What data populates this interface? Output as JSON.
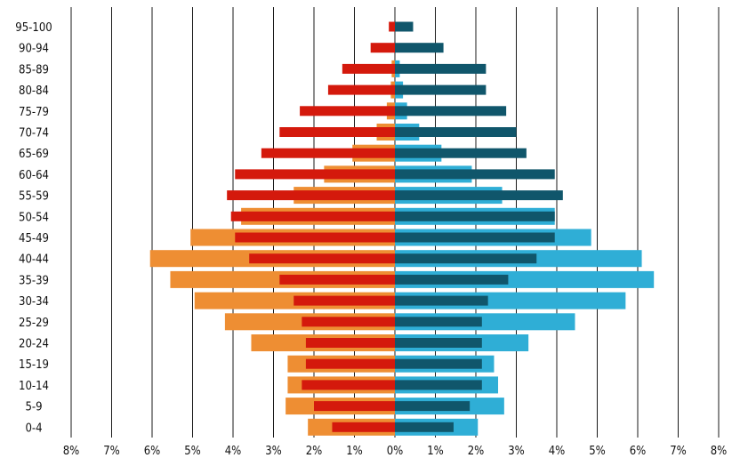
{
  "chart_data": {
    "type": "bar",
    "orientation": "horizontal",
    "layout": "population-pyramid",
    "title": "",
    "xlabel": "",
    "ylabel": "",
    "categories": [
      "95-100",
      "90-94",
      "85-89",
      "80-84",
      "75-79",
      "70-74",
      "65-69",
      "60-64",
      "55-59",
      "50-54",
      "45-49",
      "40-44",
      "35-39",
      "30-34",
      "25-29",
      "20-24",
      "15-19",
      "10-14",
      "5-9",
      "0-4"
    ],
    "xlim": [
      -8,
      8
    ],
    "xticks": [
      -8,
      -7,
      -6,
      -5,
      -4,
      -3,
      -2,
      -1,
      0,
      1,
      2,
      3,
      4,
      5,
      6,
      7,
      8
    ],
    "xtick_labels": [
      "8%",
      "7%",
      "6%",
      "5%",
      "4%",
      "3%",
      "2%",
      "1%",
      "0%",
      "1%",
      "2%",
      "3%",
      "4%",
      "5%",
      "6%",
      "7%",
      "8%"
    ],
    "grid": "vertical",
    "legend": "none",
    "series": [
      {
        "side": "left",
        "style": "wide",
        "color": "#EE8E33",
        "values": [
          0,
          0,
          0.08,
          0.1,
          0.2,
          0.45,
          1.05,
          1.75,
          2.5,
          3.8,
          5.05,
          6.05,
          5.55,
          4.95,
          4.2,
          3.55,
          2.65,
          2.65,
          2.7,
          2.15
        ]
      },
      {
        "side": "right",
        "style": "wide",
        "color": "#2FAED6",
        "values": [
          0,
          0,
          0.12,
          0.2,
          0.3,
          0.6,
          1.15,
          1.9,
          2.65,
          3.95,
          4.85,
          6.1,
          6.4,
          5.7,
          4.45,
          3.3,
          2.45,
          2.55,
          2.7,
          2.05
        ]
      },
      {
        "side": "left",
        "style": "narrow",
        "color": "#D4190C",
        "values": [
          0.15,
          0.6,
          1.3,
          1.65,
          2.35,
          2.85,
          3.3,
          3.95,
          4.15,
          4.05,
          3.95,
          3.6,
          2.85,
          2.5,
          2.3,
          2.2,
          2.2,
          2.3,
          2.0,
          1.55
        ]
      },
      {
        "side": "right",
        "style": "narrow",
        "color": "#10566B",
        "values": [
          0.45,
          1.2,
          2.25,
          2.25,
          2.75,
          3.0,
          3.25,
          3.95,
          4.15,
          3.95,
          3.95,
          3.5,
          2.8,
          2.3,
          2.15,
          2.15,
          2.15,
          2.15,
          1.85,
          1.45
        ]
      }
    ]
  }
}
